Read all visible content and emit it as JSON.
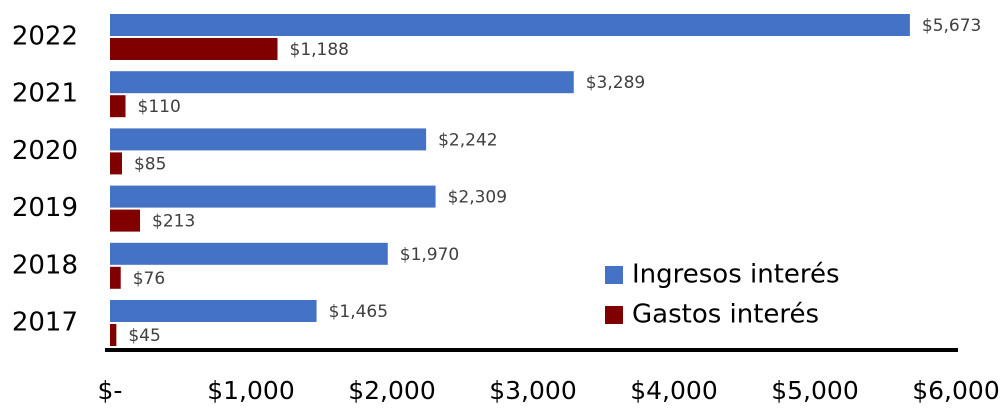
{
  "chart_data": {
    "type": "hbar",
    "categories": [
      "2022",
      "2021",
      "2020",
      "2019",
      "2018",
      "2017"
    ],
    "series": [
      {
        "name": "Ingresos interés",
        "color": "#4472c4",
        "values": [
          5673,
          3289,
          2242,
          2309,
          1970,
          1465
        ],
        "value_labels": [
          "$5,673",
          "$3,289",
          "$2,242",
          "$2,309",
          "$1,970",
          "$1,465"
        ]
      },
      {
        "name": "Gastos interés",
        "color": "#800000",
        "values": [
          1188,
          110,
          85,
          213,
          76,
          45
        ],
        "value_labels": [
          "$1,188",
          "$110",
          "$85",
          "$213",
          "$76",
          "$45"
        ]
      }
    ],
    "xlim": [
      0,
      6000
    ],
    "xticks": [
      {
        "value": 0,
        "label": "$-"
      },
      {
        "value": 1000,
        "label": "$1,000"
      },
      {
        "value": 2000,
        "label": "$2,000"
      },
      {
        "value": 3000,
        "label": "$3,000"
      },
      {
        "value": 4000,
        "label": "$4,000"
      },
      {
        "value": 5000,
        "label": "$5,000"
      },
      {
        "value": 6000,
        "label": "$6,000"
      }
    ],
    "grid": false,
    "legend": "lower right"
  }
}
